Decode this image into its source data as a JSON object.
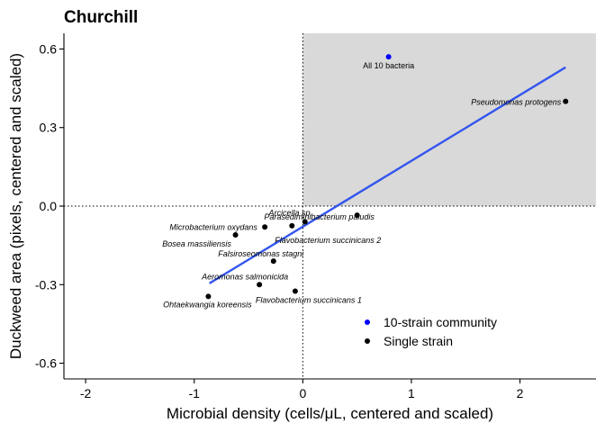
{
  "chart_data": {
    "type": "scatter",
    "title": "Churchill",
    "xlabel": "Microbial density (cells/μL, centered and scaled)",
    "ylabel": "Duckweed area (pixels, centered and scaled)",
    "xlim": [
      -2.2,
      2.7
    ],
    "ylim": [
      -0.66,
      0.66
    ],
    "x_ticks": [
      -2,
      -1,
      0,
      1,
      2
    ],
    "x_tick_labels": [
      "-2",
      "-1",
      "0",
      "1",
      "2"
    ],
    "y_ticks": [
      -0.6,
      -0.3,
      0.0,
      0.3,
      0.6
    ],
    "y_tick_labels": [
      "-0.6",
      "-0.3",
      "0.0",
      "0.3",
      "0.6"
    ],
    "grid": false,
    "reference_lines": {
      "x": 0,
      "y": 0,
      "style": "dotted"
    },
    "shaded_quadrant": {
      "x": [
        0,
        2.7
      ],
      "y": [
        0,
        0.66
      ],
      "color": "#d9d9d9"
    },
    "fit_line": {
      "x": [
        -0.86,
        2.42
      ],
      "y": [
        -0.295,
        0.53
      ],
      "color": "#3355ee"
    },
    "series": [
      {
        "name": "10-strain community",
        "color": "#0000ff",
        "points": [
          {
            "x": 0.79,
            "y": 0.57,
            "label": "All 10 bacteria",
            "italic": false
          }
        ]
      },
      {
        "name": "Single strain",
        "color": "#000000",
        "points": [
          {
            "x": 2.42,
            "y": 0.4,
            "label": "Pseudomonas protogens",
            "italic": true
          },
          {
            "x": 0.5,
            "y": -0.035,
            "label": "Parasediminibacterium paludis",
            "italic": true
          },
          {
            "x": 0.02,
            "y": -0.06,
            "label": "Arcicella sp.",
            "italic": true
          },
          {
            "x": -0.1,
            "y": -0.075,
            "label": "Flavobacterium succinicans 2",
            "italic": true
          },
          {
            "x": -0.35,
            "y": -0.08,
            "label": "Microbacterium oxydans",
            "italic": true
          },
          {
            "x": -0.62,
            "y": -0.11,
            "label": "Bosea massiliensis",
            "italic": true
          },
          {
            "x": -0.27,
            "y": -0.21,
            "label": "Falsiroseomonas stagni",
            "italic": true
          },
          {
            "x": -0.4,
            "y": -0.3,
            "label": "Aeromonas salmonicida",
            "italic": true
          },
          {
            "x": -0.07,
            "y": -0.325,
            "label": "Flavobacterium succinicans 1",
            "italic": true
          },
          {
            "x": -0.87,
            "y": -0.345,
            "label": "Ohtaekwangia koreensis",
            "italic": true
          }
        ]
      }
    ],
    "legend_position": "bottom-right"
  }
}
